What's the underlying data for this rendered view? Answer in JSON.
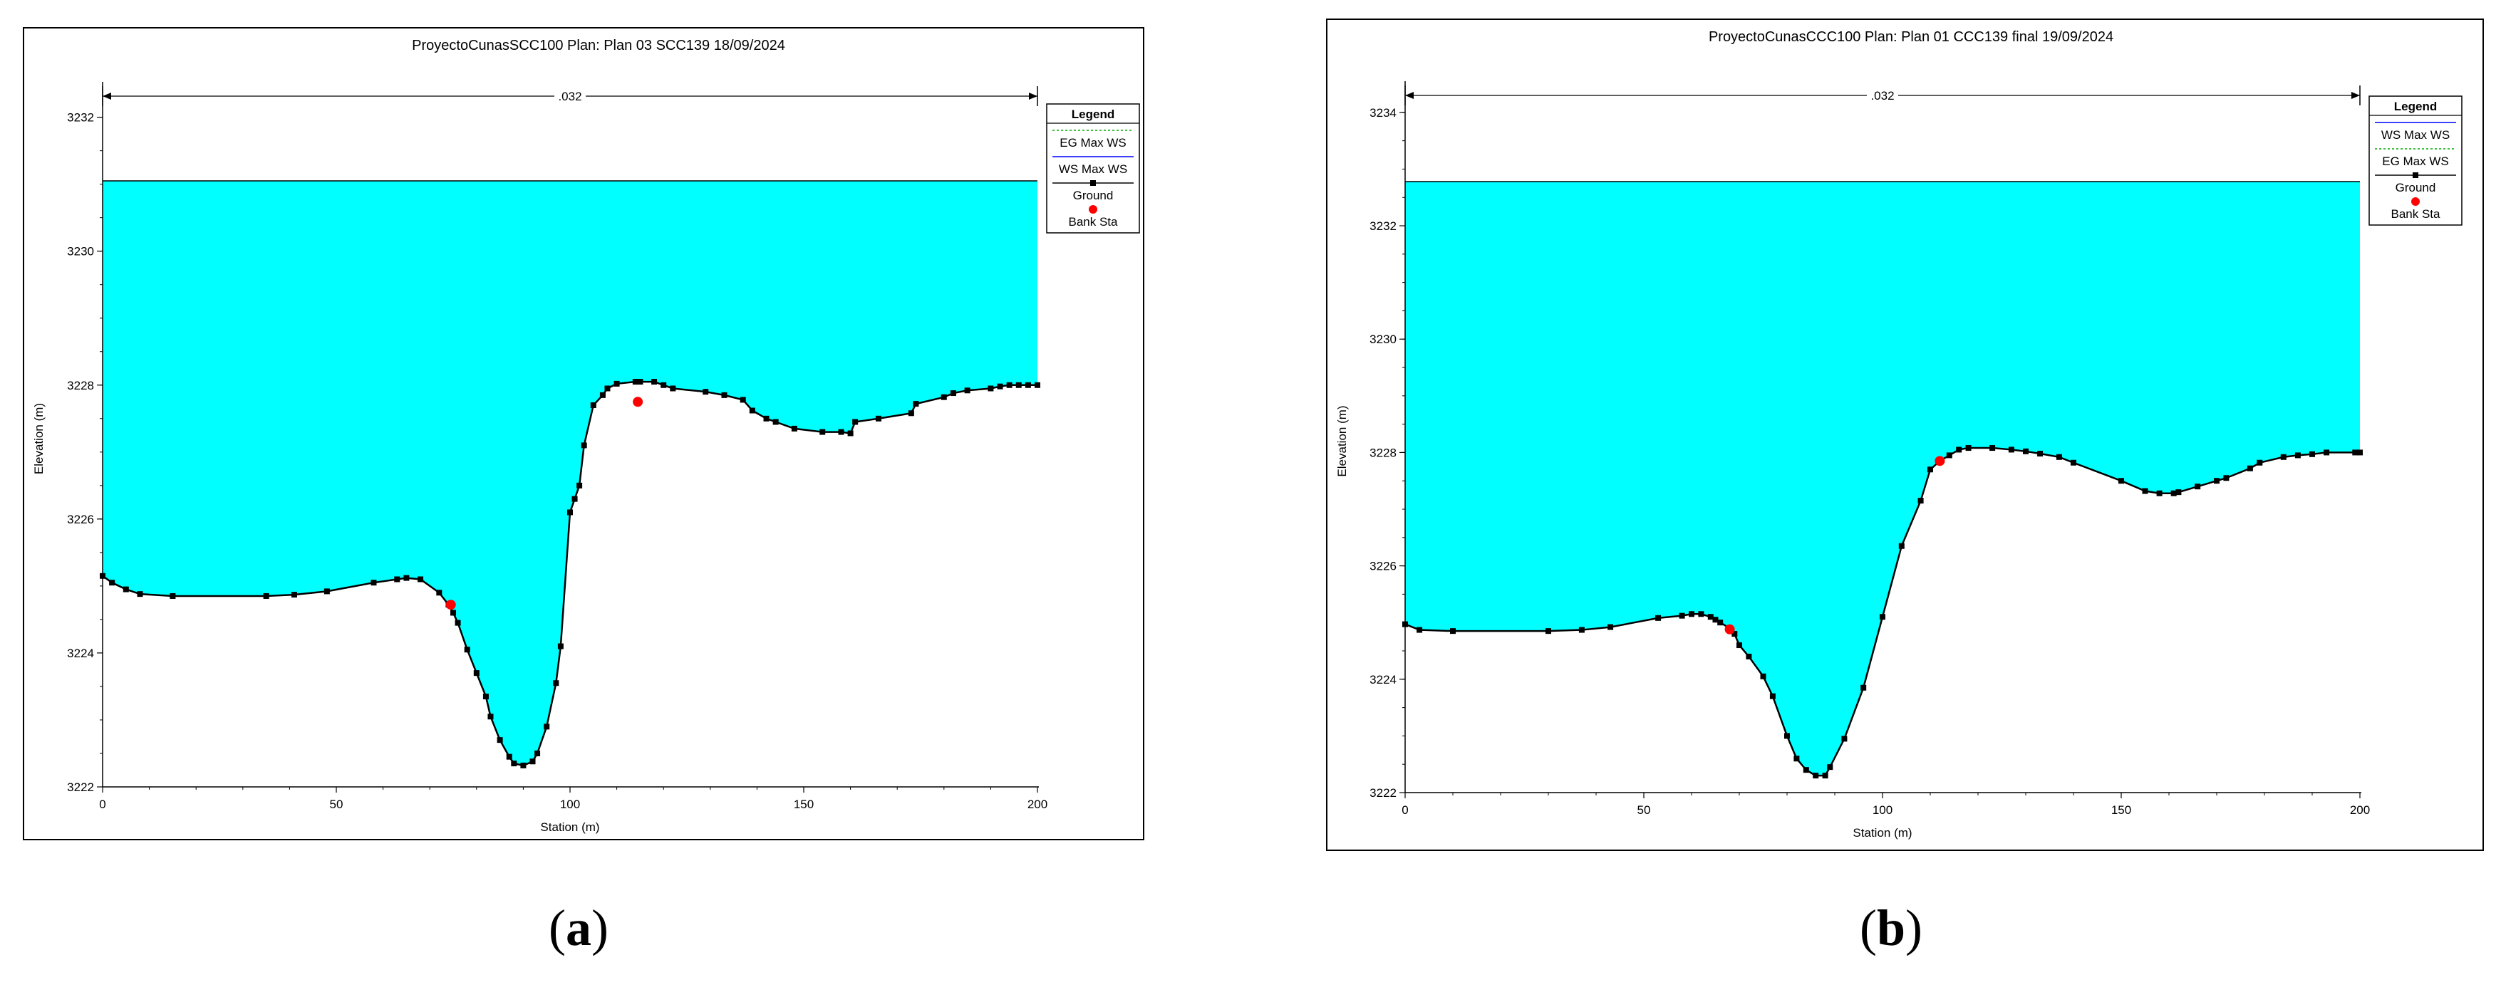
{
  "captions": [
    {
      "open": "(",
      "letter": "a",
      "close": ")"
    },
    {
      "open": "(",
      "letter": "b",
      "close": ")"
    }
  ],
  "colors": {
    "water": "#00ffff",
    "ground": "#000000",
    "bank": "#ff0000",
    "eg_line": "#00aa00",
    "ws_line": "#0000ff"
  },
  "chart_data": [
    {
      "type": "area",
      "title": "ProyectoCunasSCC100      Plan: Plan 03 SCC139    18/09/2024",
      "xlabel": "Station (m)",
      "ylabel": "Elevation (m)",
      "xlim": [
        0,
        200
      ],
      "ylim": [
        3222,
        3232.4
      ],
      "xticks": [
        0,
        50,
        100,
        150,
        200
      ],
      "yticks": [
        3222,
        3224,
        3226,
        3228,
        3230,
        3232
      ],
      "manning_label": ".032",
      "water_surface_elevation": 3231.05,
      "legend": {
        "title": "Legend",
        "position": "top-right",
        "entries": [
          {
            "label": "EG Max WS",
            "style": "eg"
          },
          {
            "label": "WS Max WS",
            "style": "ws"
          },
          {
            "label": "Ground",
            "style": "ground"
          },
          {
            "label": "Bank Sta",
            "style": "bank"
          }
        ]
      },
      "ground": {
        "x": [
          0,
          2,
          5,
          8,
          15,
          35,
          41,
          48,
          58,
          63,
          65,
          68,
          72,
          74,
          75,
          76,
          78,
          80,
          82,
          83,
          85,
          87,
          88,
          90,
          92,
          93,
          95,
          97,
          98,
          100,
          101,
          102,
          103,
          105,
          107,
          108,
          110,
          114,
          115,
          118,
          120,
          122,
          129,
          133,
          137,
          139,
          142,
          144,
          148,
          154,
          158,
          160,
          161,
          166,
          173,
          174,
          180,
          182,
          185,
          190,
          192,
          194,
          196,
          198,
          200
        ],
        "y": [
          3225.15,
          3225.05,
          3224.95,
          3224.88,
          3224.85,
          3224.85,
          3224.87,
          3224.92,
          3225.05,
          3225.1,
          3225.12,
          3225.1,
          3224.9,
          3224.72,
          3224.6,
          3224.45,
          3224.05,
          3223.7,
          3223.35,
          3223.05,
          3222.7,
          3222.45,
          3222.35,
          3222.32,
          3222.38,
          3222.5,
          3222.9,
          3223.55,
          3224.1,
          3226.1,
          3226.3,
          3226.5,
          3227.1,
          3227.7,
          3227.85,
          3227.95,
          3228.02,
          3228.05,
          3228.05,
          3228.05,
          3228.0,
          3227.95,
          3227.9,
          3227.85,
          3227.78,
          3227.62,
          3227.5,
          3227.45,
          3227.35,
          3227.3,
          3227.3,
          3227.28,
          3227.45,
          3227.5,
          3227.58,
          3227.72,
          3227.82,
          3227.88,
          3227.92,
          3227.95,
          3227.98,
          3228.0,
          3228.0,
          3228.0,
          3228.0
        ]
      },
      "bank_stations": [
        [
          74.5,
          3224.72
        ],
        [
          114.5,
          3227.75
        ]
      ]
    },
    {
      "type": "area",
      "title": "ProyectoCunasCCC100      Plan: Plan 01 CCC139 final    19/09/2024",
      "xlabel": "Station (m)",
      "ylabel": "Elevation (m)",
      "xlim": [
        0,
        200
      ],
      "ylim": [
        3222,
        3234.4
      ],
      "xticks": [
        0,
        50,
        100,
        150,
        200
      ],
      "yticks": [
        3222,
        3224,
        3226,
        3228,
        3230,
        3232,
        3234
      ],
      "manning_label": ".032",
      "water_surface_elevation": 3232.78,
      "legend": {
        "title": "Legend",
        "position": "top-right",
        "entries": [
          {
            "label": "WS Max WS",
            "style": "ws"
          },
          {
            "label": "EG Max WS",
            "style": "eg"
          },
          {
            "label": "Ground",
            "style": "ground"
          },
          {
            "label": "Bank Sta",
            "style": "bank"
          }
        ]
      },
      "ground": {
        "x": [
          0,
          3,
          10,
          30,
          37,
          43,
          53,
          58,
          60,
          62,
          64,
          65,
          66,
          68,
          69,
          70,
          72,
          75,
          77,
          80,
          82,
          84,
          86,
          88,
          89,
          92,
          96,
          100,
          104,
          108,
          110,
          112,
          114,
          116,
          118,
          123,
          127,
          130,
          133,
          137,
          140,
          150,
          155,
          158,
          161,
          162,
          166,
          170,
          172,
          177,
          179,
          184,
          187,
          190,
          193,
          199,
          200
        ],
        "y": [
          3224.97,
          3224.87,
          3224.85,
          3224.85,
          3224.87,
          3224.92,
          3225.08,
          3225.12,
          3225.15,
          3225.15,
          3225.1,
          3225.05,
          3225.0,
          3224.9,
          3224.8,
          3224.6,
          3224.4,
          3224.05,
          3223.7,
          3223.0,
          3222.6,
          3222.4,
          3222.3,
          3222.3,
          3222.45,
          3222.95,
          3223.85,
          3225.1,
          3226.35,
          3227.15,
          3227.7,
          3227.85,
          3227.95,
          3228.05,
          3228.08,
          3228.08,
          3228.05,
          3228.02,
          3227.98,
          3227.92,
          3227.82,
          3227.5,
          3227.32,
          3227.28,
          3227.28,
          3227.3,
          3227.4,
          3227.5,
          3227.55,
          3227.72,
          3227.82,
          3227.92,
          3227.95,
          3227.97,
          3228.0,
          3228.0,
          3228.0
        ]
      },
      "bank_stations": [
        [
          68,
          3224.88
        ],
        [
          112,
          3227.85
        ]
      ]
    }
  ]
}
